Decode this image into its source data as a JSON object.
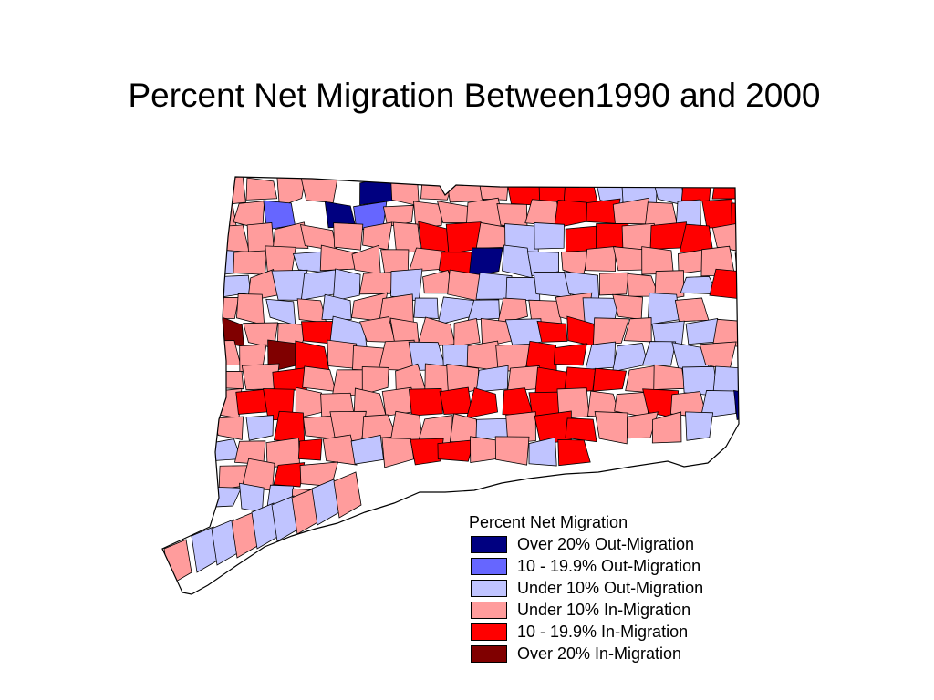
{
  "title": "Percent Net Migration Between1990 and 2000",
  "legend": {
    "heading": "Percent Net Migration",
    "items": [
      {
        "label": "Over 20% Out-Migration",
        "color": "#000080"
      },
      {
        "label": "10 - 19.9% Out-Migration",
        "color": "#6666ff"
      },
      {
        "label": "Under 10% Out-Migration",
        "color": "#c0c4ff"
      },
      {
        "label": "Under 10% In-Migration",
        "color": "#ff9c9c"
      },
      {
        "label": "10 - 19.9% In-Migration",
        "color": "#ff0000"
      },
      {
        "label": "Over 20% In-Migration",
        "color": "#800000"
      }
    ]
  },
  "map_colors": {
    "boundary": "#000000",
    "background": "#ffffff"
  }
}
